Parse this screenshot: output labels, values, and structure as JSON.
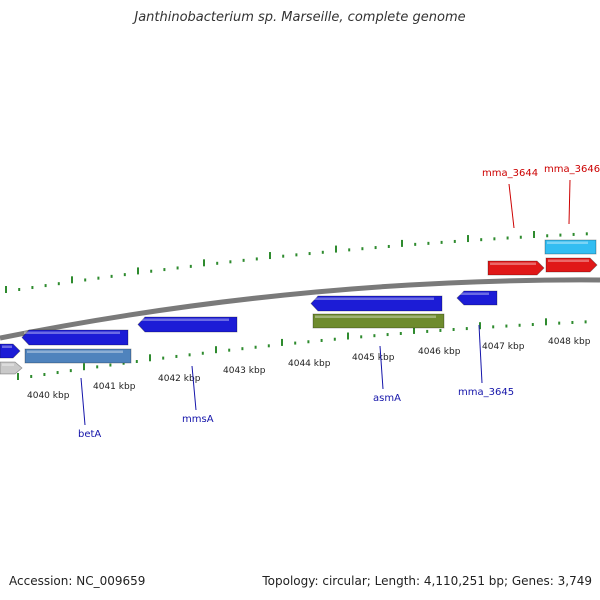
{
  "title": "Janthinobacterium sp. Marseille, complete genome",
  "footer": {
    "accession": "Accession: NC_009659",
    "summary": "Topology: circular; Length: 4,110,251 bp; Genes: 3,749"
  },
  "colors": {
    "gene_dark_blue": "#1c1cd6",
    "gene_steel_blue": "#4f83bd",
    "gene_olive": "#6e8b2e",
    "gene_red": "#e01818",
    "gene_sky": "#33bdf2",
    "gene_gray": "#c9c9c9",
    "backbone": "#7a7a7a",
    "tick": "#2e8b2e",
    "label_blue": "#1515aa",
    "label_red": "#cc0000"
  },
  "scale_labels": [
    "4040 kbp",
    "4041 kbp",
    "4042 kbp",
    "4043 kbp",
    "4044 kbp",
    "4045 kbp",
    "4046 kbp",
    "4047 kbp",
    "4048 kbp"
  ],
  "gene_labels": [
    {
      "text": "betA",
      "color": "label_blue"
    },
    {
      "text": "mmsA",
      "color": "label_blue"
    },
    {
      "text": "asmA",
      "color": "label_blue"
    },
    {
      "text": "mma_3645",
      "color": "label_blue"
    },
    {
      "text": "mma_3644",
      "color": "label_red"
    },
    {
      "text": "mma_3646",
      "color": "label_red"
    }
  ]
}
